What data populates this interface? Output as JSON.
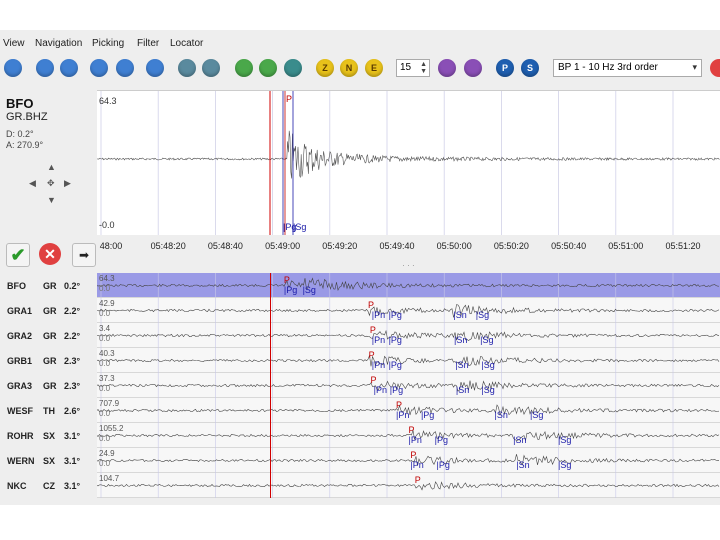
{
  "menu": [
    "View",
    "Navigation",
    "Picking",
    "Filter",
    "Locator"
  ],
  "toolbar": {
    "buttons": [
      {
        "icon": "home-icon",
        "color": "blue",
        "label": ""
      },
      {
        "icon": "chevron-up-icon",
        "color": "blue",
        "label": ""
      },
      {
        "icon": "chevron-down-icon",
        "color": "blue",
        "label": ""
      },
      {
        "icon": "skip-back-icon",
        "color": "blue",
        "label": ""
      },
      {
        "icon": "skip-forward-icon",
        "color": "blue",
        "label": ""
      },
      {
        "icon": "info-icon",
        "color": "blue",
        "label": ""
      },
      {
        "icon": "zoom-in-icon",
        "color": "glassy",
        "label": ""
      },
      {
        "icon": "zoom-out-icon",
        "color": "glassy",
        "label": ""
      },
      {
        "icon": "pick-set-icon",
        "color": "green",
        "label": ""
      },
      {
        "icon": "pick-back-icon",
        "color": "green",
        "label": ""
      },
      {
        "icon": "pick-next-icon",
        "color": "teal",
        "label": ""
      },
      {
        "icon": "component-z-icon",
        "color": "yellow",
        "label": "Z"
      },
      {
        "icon": "component-n-icon",
        "color": "yellow",
        "label": "N"
      },
      {
        "icon": "component-e-icon",
        "color": "yellow",
        "label": "E"
      },
      {
        "icon": "rotate-icon",
        "color": "purple",
        "label": ""
      },
      {
        "icon": "lock-icon",
        "color": "purple",
        "label": ""
      },
      {
        "icon": "phase-p-icon",
        "color": "darkblue",
        "label": "P"
      },
      {
        "icon": "phase-s-icon",
        "color": "darkblue",
        "label": "S"
      },
      {
        "icon": "remove-icon",
        "color": "red",
        "label": ""
      }
    ],
    "spin_value": "15",
    "filter_value": "BP 1 - 10 Hz 3rd order"
  },
  "info": {
    "station": "BFO",
    "channel": "GR.BHZ",
    "distance": "D: 0.2°",
    "azimuth": "A: 270.9°"
  },
  "top_trace": {
    "amp_max": "64.3",
    "amp_min": "-0.0",
    "picks": [
      "P",
      "Pg",
      "Sg"
    ]
  },
  "time_ticks": [
    "48:00",
    "05:48:20",
    "05:48:40",
    "05:49:00",
    "05:49:20",
    "05:49:40",
    "05:50:00",
    "05:50:20",
    "05:50:40",
    "05:51:00",
    "05:51:20"
  ],
  "stations": [
    {
      "name": "BFO",
      "net": "GR",
      "dist": "0.2°",
      "amp": "64.3",
      "amp0": "0.0",
      "selected": true,
      "picks": [
        {
          "t": "P",
          "c": "red",
          "x": 0.3,
          "y": 2
        },
        {
          "t": "Pg",
          "c": "blue",
          "x": 0.3,
          "y": 12
        },
        {
          "t": "Sg",
          "c": "blue",
          "x": 0.33,
          "y": 12
        }
      ]
    },
    {
      "name": "GRA1",
      "net": "GR",
      "dist": "2.2°",
      "amp": "42.9",
      "amp0": "0.0",
      "selected": false,
      "picks": [
        {
          "t": "P",
          "c": "red",
          "x": 0.435,
          "y": 2
        },
        {
          "t": "Pn",
          "c": "blue",
          "x": 0.441,
          "y": 12
        },
        {
          "t": "Pg",
          "c": "blue",
          "x": 0.468,
          "y": 12
        },
        {
          "t": "Sn",
          "c": "blue",
          "x": 0.572,
          "y": 12
        },
        {
          "t": "Sg",
          "c": "blue",
          "x": 0.608,
          "y": 12
        }
      ]
    },
    {
      "name": "GRA2",
      "net": "GR",
      "dist": "2.2°",
      "amp": "3.4",
      "amp0": "0.0",
      "selected": false,
      "picks": [
        {
          "t": "P",
          "c": "red",
          "x": 0.438,
          "y": 2
        },
        {
          "t": "Pn",
          "c": "blue",
          "x": 0.441,
          "y": 12
        },
        {
          "t": "Pg",
          "c": "blue",
          "x": 0.468,
          "y": 12
        },
        {
          "t": "Sn",
          "c": "blue",
          "x": 0.573,
          "y": 12
        },
        {
          "t": "Sg",
          "c": "blue",
          "x": 0.615,
          "y": 12
        }
      ]
    },
    {
      "name": "GRB1",
      "net": "GR",
      "dist": "2.3°",
      "amp": "40.3",
      "amp0": "0.0",
      "selected": false,
      "picks": [
        {
          "t": "P",
          "c": "red",
          "x": 0.436,
          "y": 2
        },
        {
          "t": "Pn",
          "c": "blue",
          "x": 0.441,
          "y": 12
        },
        {
          "t": "Pg",
          "c": "blue",
          "x": 0.468,
          "y": 12
        },
        {
          "t": "Sn",
          "c": "blue",
          "x": 0.575,
          "y": 12
        },
        {
          "t": "Sg",
          "c": "blue",
          "x": 0.617,
          "y": 12
        }
      ]
    },
    {
      "name": "GRA3",
      "net": "GR",
      "dist": "2.3°",
      "amp": "37.3",
      "amp0": "0.0",
      "selected": false,
      "picks": [
        {
          "t": "P",
          "c": "red",
          "x": 0.439,
          "y": 2
        },
        {
          "t": "Pn",
          "c": "blue",
          "x": 0.444,
          "y": 12
        },
        {
          "t": "Pg",
          "c": "blue",
          "x": 0.47,
          "y": 12
        },
        {
          "t": "Sn",
          "c": "blue",
          "x": 0.576,
          "y": 12
        },
        {
          "t": "Sg",
          "c": "blue",
          "x": 0.617,
          "y": 12
        }
      ]
    },
    {
      "name": "WESF",
      "net": "TH",
      "dist": "2.6°",
      "amp": "707.9",
      "amp0": "0.0",
      "selected": false,
      "picks": [
        {
          "t": "P",
          "c": "red",
          "x": 0.48,
          "y": 2
        },
        {
          "t": "Pn",
          "c": "blue",
          "x": 0.48,
          "y": 12
        },
        {
          "t": "Pg",
          "c": "blue",
          "x": 0.52,
          "y": 12
        },
        {
          "t": "Sn",
          "c": "blue",
          "x": 0.638,
          "y": 12
        },
        {
          "t": "Sg",
          "c": "blue",
          "x": 0.695,
          "y": 12
        }
      ]
    },
    {
      "name": "ROHR",
      "net": "SX",
      "dist": "3.1°",
      "amp": "1055.2",
      "amp0": "0.0",
      "selected": false,
      "picks": [
        {
          "t": "P",
          "c": "red",
          "x": 0.5,
          "y": 2
        },
        {
          "t": "Pn",
          "c": "blue",
          "x": 0.5,
          "y": 12
        },
        {
          "t": "Pg",
          "c": "blue",
          "x": 0.542,
          "y": 12
        },
        {
          "t": "Sn",
          "c": "blue",
          "x": 0.668,
          "y": 12
        },
        {
          "t": "Sg",
          "c": "blue",
          "x": 0.74,
          "y": 12
        }
      ]
    },
    {
      "name": "WERN",
      "net": "SX",
      "dist": "3.1°",
      "amp": "24.9",
      "amp0": "0.0",
      "selected": false,
      "picks": [
        {
          "t": "P",
          "c": "red",
          "x": 0.503,
          "y": 2
        },
        {
          "t": "Pn",
          "c": "blue",
          "x": 0.503,
          "y": 12
        },
        {
          "t": "Pg",
          "c": "blue",
          "x": 0.545,
          "y": 12
        },
        {
          "t": "Sn",
          "c": "blue",
          "x": 0.673,
          "y": 12
        },
        {
          "t": "Sg",
          "c": "blue",
          "x": 0.74,
          "y": 12
        }
      ]
    },
    {
      "name": "NKC",
      "net": "CZ",
      "dist": "3.1°",
      "amp": "104.7",
      "amp0": "",
      "selected": false,
      "picks": [
        {
          "t": "P",
          "c": "red",
          "x": 0.51,
          "y": 2
        }
      ]
    }
  ]
}
